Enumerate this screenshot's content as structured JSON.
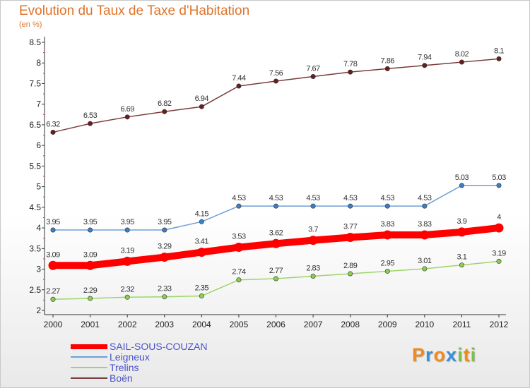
{
  "header": {
    "title": "Evolution du Taux de Taxe d'Habitation",
    "subtitle": "(en %)"
  },
  "chart_data": {
    "type": "line",
    "title": "Evolution du Taux de Taxe d'Habitation",
    "ylabel": "(en %)",
    "xlabel": "",
    "x": [
      "2000",
      "2001",
      "2002",
      "2003",
      "2004",
      "2005",
      "2006",
      "2007",
      "2008",
      "2009",
      "2010",
      "2011",
      "2012"
    ],
    "ylim": [
      2,
      8.5
    ],
    "yticks": [
      "2",
      "2.5",
      "3",
      "3.5",
      "4",
      "4.5",
      "5",
      "5.5",
      "6",
      "6.5",
      "7",
      "7.5",
      "8",
      "8.5"
    ],
    "grid": false,
    "legend_position": "bottom-left",
    "series": [
      {
        "name": "SAIL-SOUS-COUZAN",
        "color": "#ff0000",
        "marker_color": "#ff0000",
        "values": [
          3.09,
          3.09,
          3.19,
          3.29,
          3.41,
          3.53,
          3.62,
          3.7,
          3.77,
          3.83,
          3.83,
          3.9,
          4.0
        ],
        "labels": [
          "3.09",
          "3.09",
          "3.19",
          "3.29",
          "3.41",
          "3.53",
          "3.62",
          "3.7",
          "3.77",
          "3.83",
          "3.83",
          "3.9",
          "4"
        ]
      },
      {
        "name": "Leigneux",
        "color": "#6e9fd6",
        "marker_color": "#3d7fc4",
        "values": [
          3.95,
          3.95,
          3.95,
          3.95,
          4.15,
          4.53,
          4.53,
          4.53,
          4.53,
          4.53,
          4.53,
          5.03,
          5.03
        ],
        "labels": [
          "3.95",
          "3.95",
          "3.95",
          "3.95",
          "4.15",
          "4.53",
          "4.53",
          "4.53",
          "4.53",
          "4.53",
          "4.53",
          "5.03",
          "5.03"
        ]
      },
      {
        "name": "Trelins",
        "color": "#9ed56a",
        "marker_color": "#8ccd4f",
        "values": [
          2.27,
          2.29,
          2.32,
          2.33,
          2.35,
          2.74,
          2.77,
          2.83,
          2.89,
          2.95,
          3.01,
          3.1,
          3.19
        ],
        "labels": [
          "2.27",
          "2.29",
          "2.32",
          "2.33",
          "2.35",
          "2.74",
          "2.77",
          "2.83",
          "2.89",
          "2.95",
          "3.01",
          "3.1",
          "3.19"
        ]
      },
      {
        "name": "Boën",
        "color": "#7a3a3a",
        "marker_color": "#6b1d1d",
        "values": [
          6.32,
          6.53,
          6.69,
          6.82,
          6.94,
          7.44,
          7.56,
          7.67,
          7.78,
          7.86,
          7.94,
          8.02,
          8.1
        ],
        "labels": [
          "6.32",
          "6.53",
          "6.69",
          "6.82",
          "6.94",
          "7.44",
          "7.56",
          "7.67",
          "7.78",
          "7.86",
          "7.94",
          "8.02",
          "8.1"
        ]
      }
    ]
  },
  "legend": {
    "items": [
      {
        "label": "SAIL-SOUS-COUZAN",
        "color": "#ff0000",
        "thickness": "bold"
      },
      {
        "label": "Leigneux",
        "color": "#6e9fd6",
        "thickness": "thin"
      },
      {
        "label": "Trelins",
        "color": "#9ed56a",
        "thickness": "thin"
      },
      {
        "label": "Boën",
        "color": "#7a3a3a",
        "thickness": "thin"
      }
    ]
  },
  "logo": {
    "text": "Proxiti",
    "letters": [
      "P",
      "r",
      "o",
      "x",
      "i",
      "t",
      "i"
    ],
    "colors": [
      "#f08a1c",
      "#3a8fd6",
      "#f08a1c",
      "#3a8fd6",
      "#7cc142",
      "#f08a1c",
      "#7cc142"
    ]
  }
}
